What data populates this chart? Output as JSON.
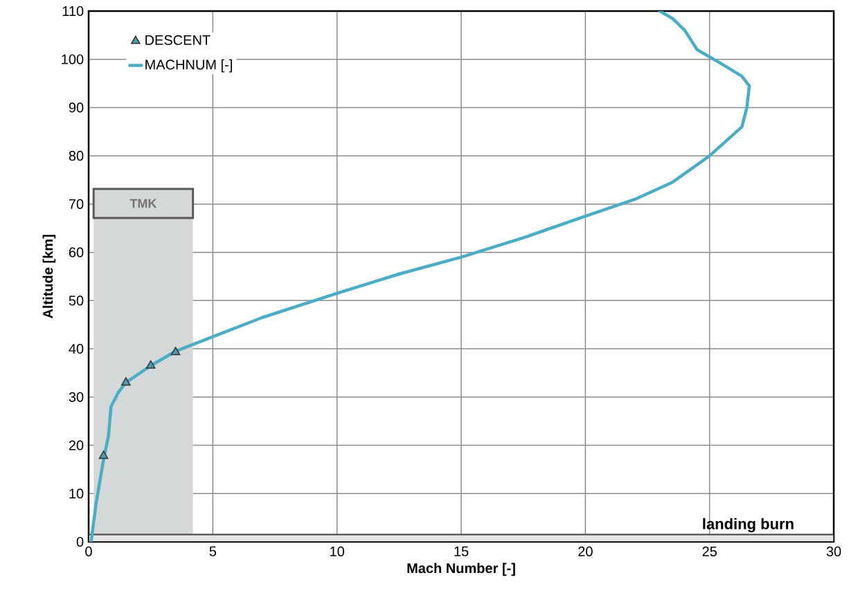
{
  "chart_data": {
    "type": "line",
    "xlabel": "Mach Number [-]",
    "ylabel": "Altitude [km]",
    "xlim": [
      0,
      30
    ],
    "xticks": [
      0,
      5,
      10,
      15,
      20,
      25,
      30
    ],
    "ylim": [
      0,
      110
    ],
    "yticks": [
      0,
      10,
      20,
      30,
      40,
      50,
      60,
      70,
      80,
      90,
      100,
      110
    ],
    "grid": true,
    "legend": "top left",
    "series": [
      {
        "name": "DESCENT",
        "type": "scatter",
        "marker": "triangle",
        "color": "#4a9bb0",
        "x": [
          0.6,
          1.5,
          2.5,
          3.5
        ],
        "values": [
          17.8,
          33,
          36.5,
          39.3
        ]
      },
      {
        "name": "MACHNUM   [-]",
        "type": "line",
        "marker": "none",
        "color": "#4bacc6",
        "x": [
          0.1,
          0.3,
          0.6,
          0.8,
          0.9,
          1.2,
          1.5,
          2.5,
          3.5,
          5,
          7,
          10,
          12.5,
          15,
          17.5,
          20,
          22,
          23.5,
          25,
          26.3,
          26.5,
          26.6,
          26.3,
          25.5,
          24.5,
          24,
          23.5,
          23
        ],
        "values": [
          0,
          8,
          17,
          22,
          28,
          31,
          33,
          36.5,
          39.5,
          42.5,
          46.5,
          51.5,
          55.5,
          59,
          63,
          67.5,
          71,
          74.5,
          80,
          86,
          90,
          94.5,
          96.5,
          99,
          102,
          106,
          108.5,
          110
        ]
      }
    ],
    "bands": [
      {
        "axis": "x",
        "from": 0.2,
        "to": 4.2,
        "label": "TMK",
        "color": "#d4d8d9"
      },
      {
        "axis": "y",
        "from": 0,
        "to": 1.5,
        "label": "landing burn",
        "color": "#e6e6e6"
      }
    ]
  }
}
